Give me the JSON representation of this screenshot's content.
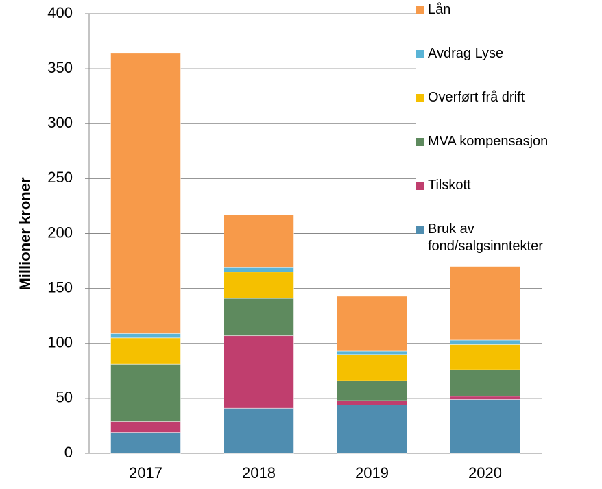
{
  "chart_data": {
    "type": "bar",
    "stacked": true,
    "y_label": "Millioner kroner",
    "categories": [
      "2017",
      "2018",
      "2019",
      "2020"
    ],
    "series": [
      {
        "name": "Bruk av fond/salgsinntekter",
        "color": "#4f8db0",
        "values": [
          19,
          41,
          44,
          49
        ]
      },
      {
        "name": "Tilskott",
        "color": "#c03e6e",
        "values": [
          10,
          66,
          4,
          3
        ]
      },
      {
        "name": "MVA kompensasjon",
        "color": "#5e8a5e",
        "values": [
          52,
          34,
          18,
          24
        ]
      },
      {
        "name": "Overført frå drift",
        "color": "#f5c000",
        "values": [
          24,
          24,
          24,
          23
        ]
      },
      {
        "name": "Avdrag Lyse",
        "color": "#5ab4d6",
        "values": [
          4,
          4,
          3,
          4
        ]
      },
      {
        "name": "Lån",
        "color": "#f79a4a",
        "values": [
          255,
          48,
          50,
          67
        ]
      }
    ],
    "ylim": [
      0,
      400
    ],
    "yticks": [
      0,
      50,
      100,
      150,
      200,
      250,
      300,
      350,
      400
    ],
    "grid": true,
    "legend": "right"
  }
}
